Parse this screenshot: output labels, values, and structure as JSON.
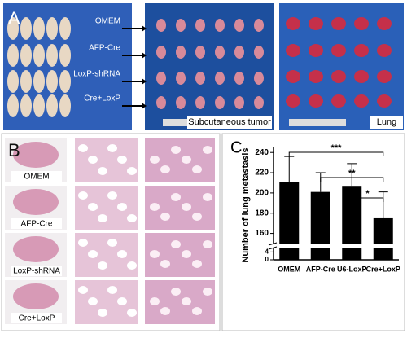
{
  "panel_a": {
    "label": "A",
    "groups": [
      "OMEM",
      "AFP-Cre",
      "LoxP-shRNA",
      "Cre+LoxP"
    ],
    "captions": [
      "Subcutaneous tumor",
      "Lung"
    ]
  },
  "panel_b": {
    "label": "B",
    "groups": [
      "OMEM",
      "AFP-Cre",
      "LoxP-shRNA",
      "Cre+LoxP"
    ]
  },
  "chart_data": {
    "type": "bar",
    "panel_label": "C",
    "y_label": "Number of lung metastasis",
    "categories": [
      "OMEM",
      "AFP-Cre",
      "U6-LoxP",
      "Cre+LoxP"
    ],
    "values": [
      211,
      201,
      207,
      175
    ],
    "errors": [
      25,
      19,
      22,
      26
    ],
    "color": "#000000",
    "ylim": [
      150,
      245
    ],
    "yticks": [
      160,
      180,
      200,
      220,
      240
    ],
    "break_ylim": [
      0,
      5
    ],
    "break_yticks": [
      0,
      4
    ],
    "annotations": [
      "***",
      "**",
      "*"
    ]
  }
}
